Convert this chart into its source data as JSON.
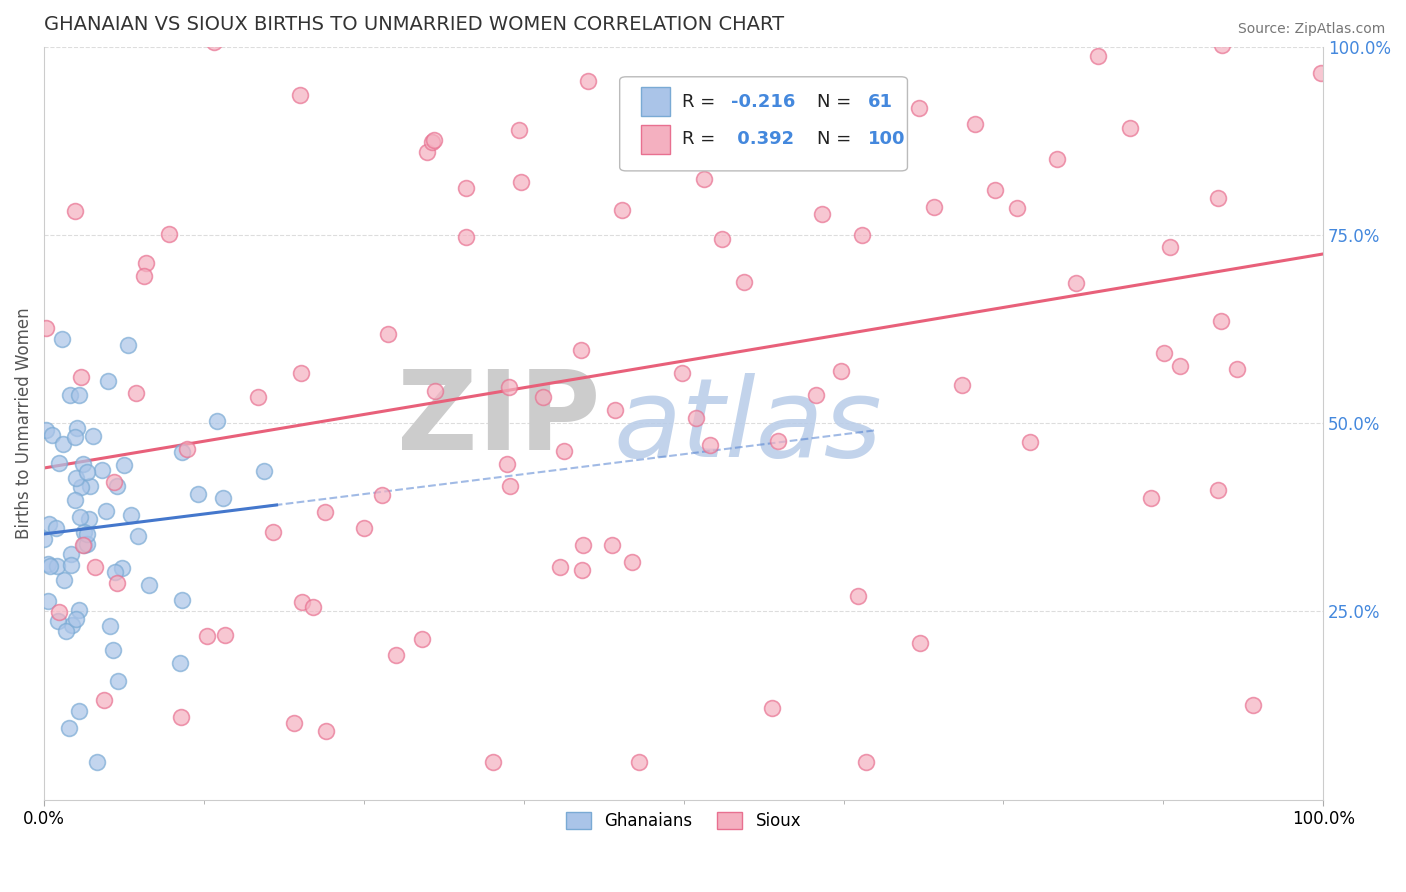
{
  "title": "GHANAIAN VS SIOUX BIRTHS TO UNMARRIED WOMEN CORRELATION CHART",
  "source": "Source: ZipAtlas.com",
  "ylabel": "Births to Unmarried Women",
  "right_yticklabels": [
    "25.0%",
    "50.0%",
    "75.0%",
    "100.0%"
  ],
  "right_ytick_vals": [
    0.25,
    0.5,
    0.75,
    1.0
  ],
  "ghanaian_color_face": "#aac4e8",
  "ghanaian_color_edge": "#7aaad4",
  "sioux_color_face": "#f4b0c0",
  "sioux_color_edge": "#e87090",
  "ghanaian_line_color": "#4477cc",
  "sioux_line_color": "#e8607a",
  "background_color": "#ffffff",
  "watermark_zip": "ZIP",
  "watermark_atlas": "atlas",
  "watermark_zip_color": "#cccccc",
  "watermark_atlas_color": "#b8cce8",
  "ghanaian_R": -0.216,
  "sioux_R": 0.392,
  "ghanaian_N": 61,
  "sioux_N": 100,
  "title_fontsize": 14,
  "tick_fontsize": 12,
  "right_tick_color": "#4488dd"
}
